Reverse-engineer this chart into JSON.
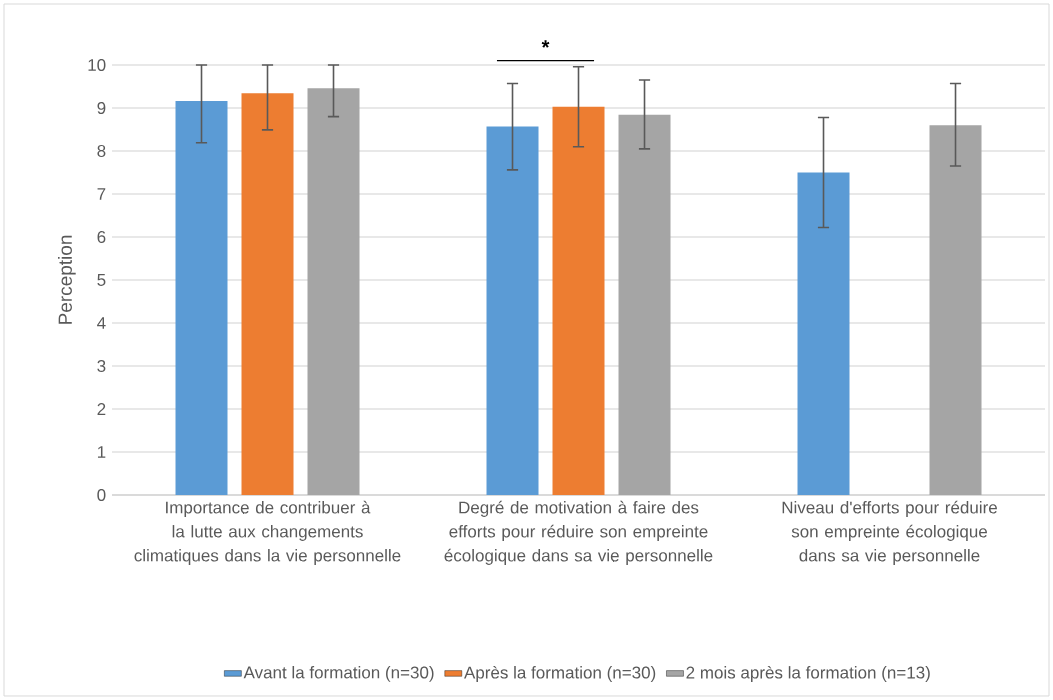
{
  "chart_data": {
    "type": "bar",
    "ylabel": "Perception",
    "categories": [
      "Importance de contribuer à la lutte aux changements climatiques dans la vie personnelle",
      "Degré de motivation à faire des efforts pour réduire son empreinte écologique dans sa vie personnelle",
      "Niveau d'efforts pour réduire son empreinte écologique dans sa vie personnelle"
    ],
    "series": [
      {
        "name": "Avant la formation (n=30)",
        "color": "#5b9bd5",
        "values": [
          9.16,
          8.57,
          7.5
        ],
        "errors": [
          [
            8.19,
            10
          ],
          [
            7.56,
            9.57
          ],
          [
            6.22,
            8.78
          ]
        ]
      },
      {
        "name": "Après la formation (n=30)",
        "color": "#ed7d31",
        "values": [
          9.34,
          9.03,
          null
        ],
        "errors": [
          [
            8.49,
            10
          ],
          [
            8.1,
            9.96
          ],
          null
        ]
      },
      {
        "name": "2 mois après la formation (n=13)",
        "color": "#a5a5a5",
        "values": [
          9.46,
          8.84,
          8.6
        ],
        "errors": [
          [
            8.8,
            10
          ],
          [
            8.05,
            9.65
          ],
          [
            7.65,
            9.57
          ]
        ]
      }
    ],
    "ylim": [
      0,
      10
    ],
    "yticks": [
      0,
      1,
      2,
      3,
      4,
      5,
      6,
      7,
      8,
      9,
      10
    ],
    "grid": "y",
    "legend": "bottom",
    "annotations": [
      "*"
    ]
  }
}
